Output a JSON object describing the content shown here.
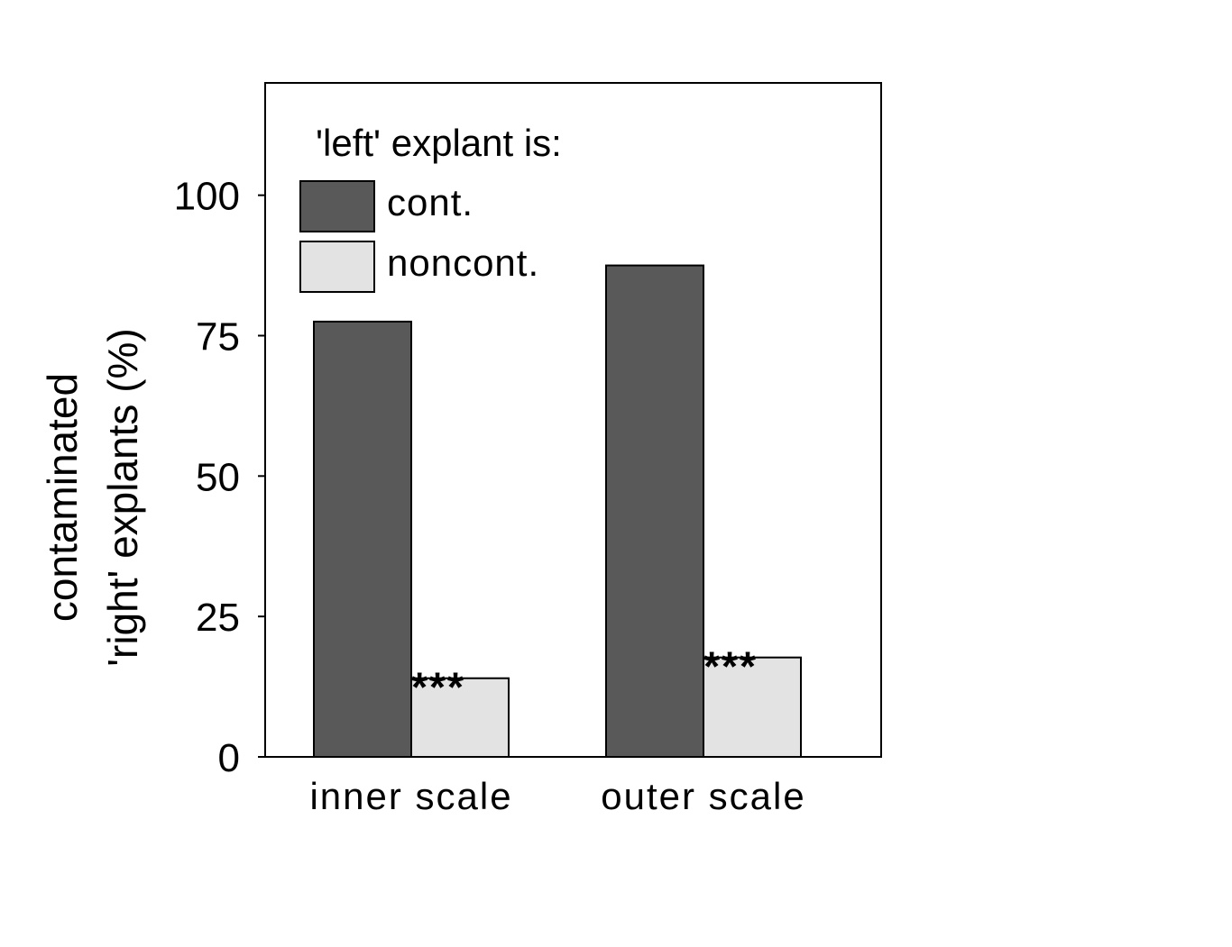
{
  "chart_data": {
    "type": "bar",
    "categories": [
      "inner scale",
      "outer scale"
    ],
    "series": [
      {
        "name": "cont.",
        "values": [
          77.5,
          87.5
        ],
        "color": "#595959"
      },
      {
        "name": "noncont.",
        "values": [
          14,
          17.7
        ],
        "color": "#e3e3e3"
      }
    ],
    "annotations": [
      {
        "category": "inner scale",
        "series": "noncont.",
        "text": "***"
      },
      {
        "category": "outer scale",
        "series": "noncont.",
        "text": "***"
      }
    ],
    "ylabel_lines": [
      "contaminated",
      "'right' explants (%)"
    ],
    "xlabel": "",
    "yticks": [
      0,
      25,
      50,
      75,
      100
    ],
    "ylim": [
      0,
      120
    ],
    "legend": {
      "title": "'left' explant is:",
      "position": "top-left"
    },
    "grid": false
  }
}
